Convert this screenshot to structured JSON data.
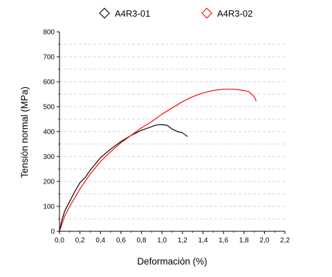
{
  "chart_data": {
    "type": "line",
    "title": "",
    "xlabel": "Deformación (%)",
    "ylabel": "Tensión normal (MPa)",
    "xlim": [
      0.0,
      2.2
    ],
    "ylim": [
      0,
      800
    ],
    "x_ticks": [
      "0,0",
      "0,2",
      "0,4",
      "0,6",
      "0,8",
      "1,0",
      "1,2",
      "1,4",
      "1,6",
      "1,8",
      "2,0",
      "2,2"
    ],
    "y_ticks": [
      "0",
      "100",
      "200",
      "300",
      "400",
      "500",
      "600",
      "700",
      "800"
    ],
    "grid": "horizontal dashed",
    "legend_position": "top",
    "series": [
      {
        "name": "A4R3-01",
        "color": "#000000",
        "marker": "diamond",
        "x": [
          0.0,
          0.02,
          0.05,
          0.1,
          0.15,
          0.2,
          0.25,
          0.3,
          0.35,
          0.4,
          0.5,
          0.6,
          0.7,
          0.8,
          0.9,
          0.95,
          1.0,
          1.05,
          1.1,
          1.15,
          1.2,
          1.25
        ],
        "y": [
          0,
          40,
          80,
          120,
          160,
          195,
          215,
          245,
          270,
          295,
          330,
          360,
          385,
          405,
          420,
          427,
          428,
          425,
          410,
          400,
          395,
          380
        ]
      },
      {
        "name": "A4R3-02",
        "color": "#ff0000",
        "marker": "diamond",
        "x": [
          0.0,
          0.05,
          0.1,
          0.2,
          0.3,
          0.4,
          0.5,
          0.6,
          0.7,
          0.8,
          0.9,
          1.0,
          1.1,
          1.2,
          1.3,
          1.4,
          1.5,
          1.6,
          1.7,
          1.8,
          1.85,
          1.9,
          1.92
        ],
        "y": [
          0,
          60,
          100,
          170,
          230,
          280,
          320,
          355,
          385,
          415,
          440,
          470,
          495,
          520,
          540,
          555,
          565,
          570,
          570,
          565,
          560,
          540,
          522
        ]
      }
    ]
  }
}
